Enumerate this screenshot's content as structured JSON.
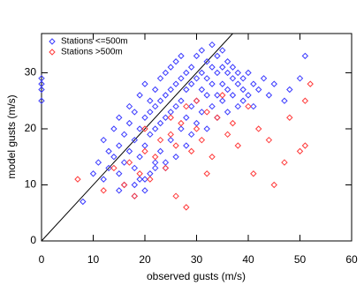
{
  "chart_data": {
    "type": "scatter",
    "xlabel": "observed gusts (m/s)",
    "ylabel": "model gusts (m/s)",
    "xlim": [
      0,
      60
    ],
    "ylim": [
      0,
      37
    ],
    "xticks": [
      0,
      10,
      20,
      30,
      40,
      50,
      60
    ],
    "yticks": [
      0,
      10,
      20,
      30
    ],
    "diagonal": true,
    "legend": "upper left",
    "series": [
      {
        "name": "Stations <=500m",
        "color": "#3a3aff",
        "x": [
          0,
          0,
          0,
          0,
          8,
          10,
          11,
          12,
          12,
          13,
          13,
          14,
          14,
          15,
          15,
          15,
          16,
          16,
          16,
          17,
          17,
          17,
          18,
          18,
          18,
          18,
          19,
          19,
          19,
          19,
          20,
          20,
          20,
          20,
          21,
          21,
          21,
          21,
          22,
          22,
          22,
          22,
          23,
          23,
          23,
          23,
          24,
          24,
          24,
          24,
          25,
          25,
          25,
          25,
          26,
          26,
          26,
          26,
          27,
          27,
          27,
          27,
          28,
          28,
          28,
          28,
          29,
          29,
          29,
          29,
          30,
          30,
          30,
          30,
          31,
          31,
          31,
          31,
          32,
          32,
          32,
          32,
          33,
          33,
          33,
          33,
          34,
          34,
          34,
          34,
          35,
          35,
          35,
          35,
          36,
          36,
          36,
          36,
          37,
          37,
          37,
          38,
          38,
          38,
          39,
          39,
          39,
          40,
          40,
          41,
          41,
          42,
          43,
          44,
          45,
          47,
          48,
          50,
          51,
          15,
          18,
          20,
          22,
          24
        ],
        "values": [
          25,
          27,
          28,
          29,
          7,
          12,
          14,
          11,
          18,
          13,
          16,
          15,
          20,
          12,
          17,
          22,
          10,
          14,
          19,
          16,
          21,
          24,
          8,
          13,
          18,
          23,
          11,
          15,
          20,
          26,
          9,
          17,
          22,
          28,
          12,
          19,
          23,
          25,
          14,
          20,
          24,
          27,
          16,
          21,
          25,
          29,
          13,
          22,
          26,
          30,
          18,
          23,
          27,
          31,
          15,
          24,
          28,
          32,
          20,
          25,
          29,
          33,
          17,
          22,
          27,
          30,
          19,
          24,
          28,
          31,
          21,
          25,
          29,
          33,
          23,
          27,
          30,
          34,
          20,
          26,
          29,
          32,
          24,
          28,
          31,
          35,
          22,
          26,
          30,
          33,
          25,
          28,
          31,
          34,
          23,
          27,
          30,
          32,
          26,
          29,
          31,
          24,
          28,
          30,
          25,
          27,
          29,
          26,
          30,
          24,
          28,
          27,
          29,
          26,
          28,
          25,
          27,
          29,
          33,
          9,
          10,
          11,
          13,
          14
        ]
      },
      {
        "name": "Stations >500m",
        "color": "#ff3a3a",
        "x": [
          7,
          12,
          14,
          16,
          17,
          18,
          19,
          20,
          20,
          21,
          22,
          23,
          24,
          25,
          25,
          26,
          27,
          28,
          28,
          29,
          30,
          30,
          31,
          32,
          33,
          34,
          35,
          36,
          37,
          38,
          40,
          41,
          42,
          44,
          45,
          47,
          48,
          50,
          51,
          51,
          52,
          26,
          32
        ],
        "values": [
          11,
          9,
          13,
          10,
          14,
          8,
          12,
          16,
          20,
          11,
          15,
          18,
          13,
          19,
          22,
          17,
          21,
          6,
          24,
          16,
          20,
          25,
          18,
          23,
          15,
          22,
          26,
          19,
          21,
          17,
          24,
          12,
          20,
          18,
          10,
          14,
          22,
          16,
          17,
          25,
          28,
          8,
          12
        ]
      }
    ]
  }
}
